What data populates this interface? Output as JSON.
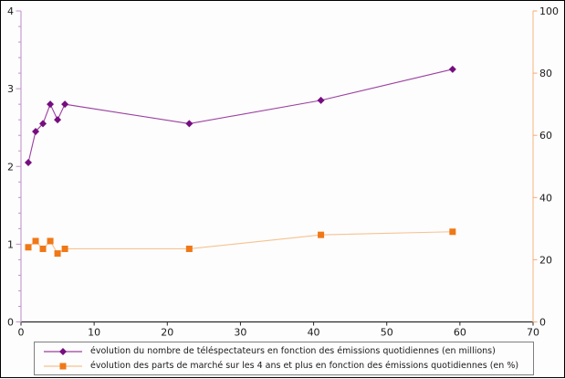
{
  "figure": {
    "background": "#fdfdfd",
    "border_color": "#000000"
  },
  "chart_data": {
    "type": "line",
    "title": "",
    "xlabel": "",
    "ylabel_left": "",
    "ylabel_right": "",
    "grid": false,
    "legend_position": "bottom",
    "legend_border_color": "#7f7f7f",
    "x": [
      1,
      2,
      3,
      4,
      5,
      6,
      23,
      41,
      59
    ],
    "series": [
      {
        "key": "viewers",
        "name": "évolution du nombre de téléspectateurs en fonction des émissions quotidiennes (en millions)",
        "axis": "left",
        "marker": "diamond",
        "marker_color": "#760d80",
        "line_color": "#9b3fa0",
        "values": [
          2.05,
          2.45,
          2.55,
          2.8,
          2.6,
          2.8,
          2.55,
          2.85,
          3.25
        ]
      },
      {
        "key": "market-share",
        "name": "évolution des parts de marché sur les 4 ans et plus en fonction des émissions quotidiennes (en %)",
        "axis": "right",
        "marker": "square",
        "marker_color": "#f07816",
        "line_color": "#f6c290",
        "values": [
          24,
          26,
          23.5,
          26,
          22,
          23.5,
          23.5,
          28,
          29
        ]
      }
    ],
    "x_axis": {
      "min": 0,
      "max": 70,
      "ticks": [
        0,
        10,
        20,
        30,
        40,
        50,
        60,
        70
      ],
      "color": "#2b2b2b",
      "label_color": "#1a1a1a"
    },
    "left_axis": {
      "min": 0,
      "max": 4,
      "ticks": [
        0,
        1,
        2,
        3,
        4
      ],
      "minor_step": 0.2,
      "color": "#d5b5dc",
      "tick_color": "#bf93c9",
      "label_color": "#1a1a1a"
    },
    "right_axis": {
      "min": 0,
      "max": 100,
      "ticks": [
        0,
        20,
        40,
        60,
        80,
        100
      ],
      "color": "#f9d0ab",
      "tick_color": "#f5a977",
      "label_color": "#1a1a1a"
    }
  }
}
